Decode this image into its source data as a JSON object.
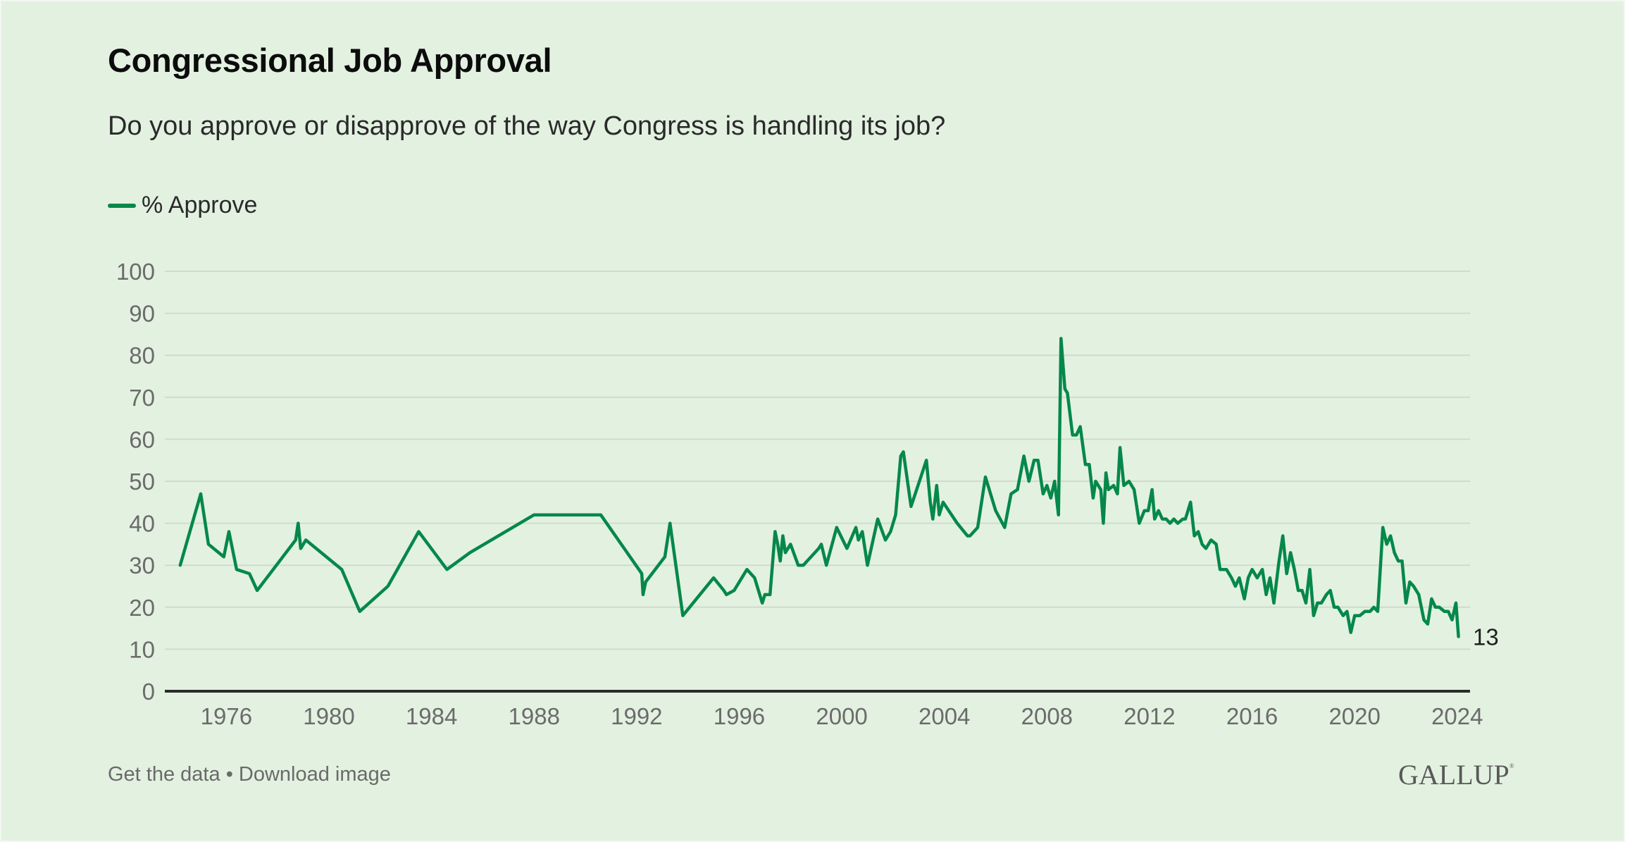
{
  "header": {
    "title": "Congressional Job Approval",
    "subtitle": "Do you approve or disapprove of the way Congress is handling its job?"
  },
  "legend": {
    "label": "% Approve",
    "color": "#05884a"
  },
  "footer": {
    "get_data": "Get the data",
    "separator": "•",
    "download": "Download image",
    "logo": "GALLUP",
    "logo_mark": "®"
  },
  "colors": {
    "background": "#e3f1e1",
    "line": "#05884a",
    "grid": "#cfdccd",
    "axis": "#2b2b2b"
  },
  "chart_data": {
    "type": "line",
    "title": "Congressional Job Approval",
    "subtitle": "Do you approve or disapprove of the way Congress is handling its job?",
    "xlabel": "",
    "ylabel": "",
    "ylim": [
      0,
      100
    ],
    "xlim": [
      1973.6,
      2024.5
    ],
    "yticks": [
      0,
      10,
      20,
      30,
      40,
      50,
      60,
      70,
      80,
      90,
      100
    ],
    "xticks": [
      1976,
      1980,
      1984,
      1988,
      1992,
      1996,
      2000,
      2004,
      2008,
      2012,
      2016,
      2020,
      2024
    ],
    "grid": true,
    "legend_position": "top-left",
    "end_label": "13",
    "series": [
      {
        "name": "% Approve",
        "points": [
          [
            1974.2,
            30
          ],
          [
            1975.0,
            47
          ],
          [
            1975.3,
            35
          ],
          [
            1975.9,
            32
          ],
          [
            1976.1,
            38
          ],
          [
            1976.4,
            29
          ],
          [
            1976.9,
            28
          ],
          [
            1977.2,
            24
          ],
          [
            1978.7,
            36
          ],
          [
            1978.8,
            40
          ],
          [
            1978.9,
            34
          ],
          [
            1979.1,
            36
          ],
          [
            1980.5,
            29
          ],
          [
            1981.2,
            19
          ],
          [
            1982.3,
            25
          ],
          [
            1983.5,
            38
          ],
          [
            1984.6,
            29
          ],
          [
            1985.5,
            33
          ],
          [
            1988.0,
            42
          ],
          [
            1990.6,
            42
          ],
          [
            1992.2,
            28
          ],
          [
            1992.25,
            23
          ],
          [
            1992.35,
            26
          ],
          [
            1993.1,
            32
          ],
          [
            1993.3,
            40
          ],
          [
            1993.8,
            18
          ],
          [
            1995.0,
            27
          ],
          [
            1995.4,
            24
          ],
          [
            1995.5,
            23
          ],
          [
            1995.8,
            24
          ],
          [
            1996.3,
            29
          ],
          [
            1996.6,
            27
          ],
          [
            1996.9,
            21
          ],
          [
            1997.0,
            23
          ],
          [
            1997.2,
            23
          ],
          [
            1997.4,
            38
          ],
          [
            1997.5,
            35
          ],
          [
            1997.6,
            31
          ],
          [
            1997.7,
            37
          ],
          [
            1997.8,
            33
          ],
          [
            1997.9,
            34
          ],
          [
            1998.0,
            35
          ],
          [
            1998.3,
            30
          ],
          [
            1998.5,
            30
          ],
          [
            1999.1,
            34
          ],
          [
            1999.2,
            35
          ],
          [
            1999.4,
            30
          ],
          [
            1999.8,
            39
          ],
          [
            2000.2,
            34
          ],
          [
            2000.55,
            39
          ],
          [
            2000.65,
            36
          ],
          [
            2000.8,
            38
          ],
          [
            2001.0,
            30
          ],
          [
            2001.4,
            41
          ],
          [
            2001.7,
            36
          ],
          [
            2001.9,
            38
          ],
          [
            2002.1,
            42
          ],
          [
            2002.3,
            56
          ],
          [
            2002.4,
            57
          ],
          [
            2002.7,
            44
          ],
          [
            2003.3,
            55
          ],
          [
            2003.45,
            45
          ],
          [
            2003.55,
            41
          ],
          [
            2003.7,
            49
          ],
          [
            2003.8,
            42
          ],
          [
            2003.95,
            45
          ],
          [
            2004.5,
            40
          ],
          [
            2004.9,
            37
          ],
          [
            2005.0,
            37
          ],
          [
            2005.3,
            39
          ],
          [
            2005.6,
            51
          ],
          [
            2006.0,
            43
          ],
          [
            2006.35,
            39
          ],
          [
            2006.6,
            47
          ],
          [
            2006.85,
            48
          ],
          [
            2007.1,
            56
          ],
          [
            2007.3,
            50
          ],
          [
            2007.5,
            55
          ],
          [
            2007.65,
            55
          ],
          [
            2007.85,
            47
          ],
          [
            2008.0,
            49
          ],
          [
            2008.15,
            46
          ],
          [
            2008.3,
            50
          ],
          [
            2008.45,
            42
          ],
          [
            2008.55,
            84
          ],
          [
            2008.7,
            72
          ],
          [
            2008.8,
            71
          ],
          [
            2009.0,
            61
          ],
          [
            2009.15,
            61
          ],
          [
            2009.3,
            63
          ],
          [
            2009.5,
            54
          ],
          [
            2009.65,
            54
          ],
          [
            2009.8,
            46
          ],
          [
            2009.9,
            50
          ],
          [
            2010.1,
            48
          ],
          [
            2010.2,
            40
          ],
          [
            2010.3,
            52
          ],
          [
            2010.4,
            48
          ],
          [
            2010.6,
            49
          ],
          [
            2010.75,
            47
          ],
          [
            2010.85,
            58
          ],
          [
            2011.0,
            49
          ],
          [
            2011.2,
            50
          ],
          [
            2011.4,
            48
          ],
          [
            2011.6,
            40
          ],
          [
            2011.8,
            43
          ],
          [
            2011.95,
            43
          ],
          [
            2012.1,
            48
          ],
          [
            2012.2,
            41
          ],
          [
            2012.35,
            43
          ],
          [
            2012.5,
            41
          ],
          [
            2012.65,
            41
          ],
          [
            2012.8,
            40
          ],
          [
            2012.95,
            41
          ],
          [
            2013.1,
            40
          ],
          [
            2013.3,
            41
          ],
          [
            2013.4,
            41
          ],
          [
            2013.6,
            45
          ],
          [
            2013.75,
            37
          ],
          [
            2013.9,
            38
          ],
          [
            2014.05,
            35
          ],
          [
            2014.2,
            34
          ],
          [
            2014.4,
            36
          ],
          [
            2014.6,
            35
          ],
          [
            2014.75,
            29
          ],
          [
            2015.0,
            29
          ],
          [
            2015.2,
            27
          ],
          [
            2015.35,
            25
          ],
          [
            2015.5,
            27
          ],
          [
            2015.7,
            22
          ],
          [
            2015.85,
            27
          ],
          [
            2016.0,
            29
          ],
          [
            2016.2,
            27
          ],
          [
            2016.4,
            29
          ],
          [
            2016.55,
            23
          ],
          [
            2016.7,
            27
          ],
          [
            2016.85,
            21
          ],
          [
            2017.05,
            31
          ],
          [
            2017.2,
            37
          ],
          [
            2017.35,
            28
          ],
          [
            2017.5,
            33
          ],
          [
            2017.65,
            29
          ],
          [
            2017.8,
            24
          ],
          [
            2017.95,
            24
          ],
          [
            2018.1,
            21
          ],
          [
            2018.25,
            29
          ],
          [
            2018.4,
            18
          ],
          [
            2018.55,
            21
          ],
          [
            2018.7,
            21
          ],
          [
            2018.9,
            23
          ],
          [
            2019.05,
            24
          ],
          [
            2019.2,
            20
          ],
          [
            2019.35,
            20
          ],
          [
            2019.55,
            18
          ],
          [
            2019.7,
            19
          ],
          [
            2019.85,
            14
          ],
          [
            2020.0,
            18
          ],
          [
            2020.2,
            18
          ],
          [
            2020.4,
            19
          ],
          [
            2020.6,
            19
          ],
          [
            2020.75,
            20
          ],
          [
            2020.9,
            19
          ],
          [
            2021.1,
            39
          ],
          [
            2021.25,
            35
          ],
          [
            2021.4,
            37
          ],
          [
            2021.55,
            33
          ],
          [
            2021.7,
            31
          ],
          [
            2021.85,
            31
          ],
          [
            2022.0,
            21
          ],
          [
            2022.15,
            26
          ],
          [
            2022.3,
            25
          ],
          [
            2022.5,
            23
          ],
          [
            2022.7,
            17
          ],
          [
            2022.85,
            16
          ],
          [
            2023.0,
            22
          ],
          [
            2023.15,
            20
          ],
          [
            2023.3,
            20
          ],
          [
            2023.5,
            19
          ],
          [
            2023.65,
            19
          ],
          [
            2023.8,
            17
          ],
          [
            2023.95,
            21
          ],
          [
            2024.05,
            13
          ]
        ]
      }
    ]
  }
}
